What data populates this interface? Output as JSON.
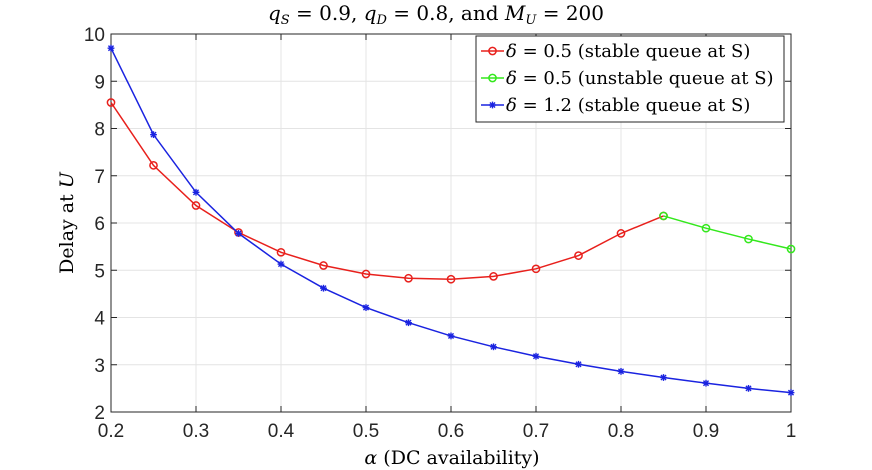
{
  "chart_data": {
    "type": "line",
    "title": "q_S = 0.9, q_D = 0.8, and M_U = 200",
    "title_parts": {
      "a": "q",
      "a_sub": "S",
      "b": " = 0.9, ",
      "c": "q",
      "c_sub": "D",
      "d": " = 0.8, and ",
      "e": "M",
      "e_sub": "U",
      "f": " = 200"
    },
    "xlabel": "α (DC availability)",
    "xlabel_parts": {
      "sym": "α",
      "rest": " (DC availability)"
    },
    "ylabel": "Delay at U",
    "ylabel_parts": {
      "text": "Delay at ",
      "sym": "U"
    },
    "xlim": [
      0.2,
      1.0
    ],
    "ylim": [
      2,
      10
    ],
    "xticks": [
      "0.2",
      "0.3",
      "0.4",
      "0.5",
      "0.6",
      "0.7",
      "0.8",
      "0.9",
      "1"
    ],
    "yticks": [
      "2",
      "3",
      "4",
      "5",
      "6",
      "7",
      "8",
      "9",
      "10"
    ],
    "grid": true,
    "legend_position": "top-right",
    "series": [
      {
        "name": "δ = 0.5 (stable queue at S)",
        "color": "#e8201c",
        "marker": "circle",
        "x": [
          0.2,
          0.25,
          0.3,
          0.35,
          0.4,
          0.45,
          0.5,
          0.55,
          0.6,
          0.65,
          0.7,
          0.75,
          0.8,
          0.85
        ],
        "y": [
          8.55,
          7.22,
          6.37,
          5.8,
          5.38,
          5.1,
          4.92,
          4.83,
          4.81,
          4.87,
          5.03,
          5.31,
          5.78,
          6.15
        ]
      },
      {
        "name": "δ = 0.5 (unstable queue at S)",
        "color": "#33e81c",
        "marker": "circle",
        "x": [
          0.85,
          0.9,
          0.95,
          1.0
        ],
        "y": [
          6.15,
          5.89,
          5.66,
          5.45
        ]
      },
      {
        "name": "δ = 1.2 (stable queue at S)",
        "color": "#1a23e0",
        "marker": "star",
        "x": [
          0.2,
          0.25,
          0.3,
          0.35,
          0.4,
          0.45,
          0.5,
          0.55,
          0.6,
          0.65,
          0.7,
          0.75,
          0.8,
          0.85,
          0.9,
          0.95,
          1.0
        ],
        "y": [
          9.7,
          7.87,
          6.65,
          5.78,
          5.13,
          4.62,
          4.21,
          3.89,
          3.61,
          3.38,
          3.18,
          3.01,
          2.86,
          2.73,
          2.61,
          2.5,
          2.41
        ]
      }
    ]
  }
}
